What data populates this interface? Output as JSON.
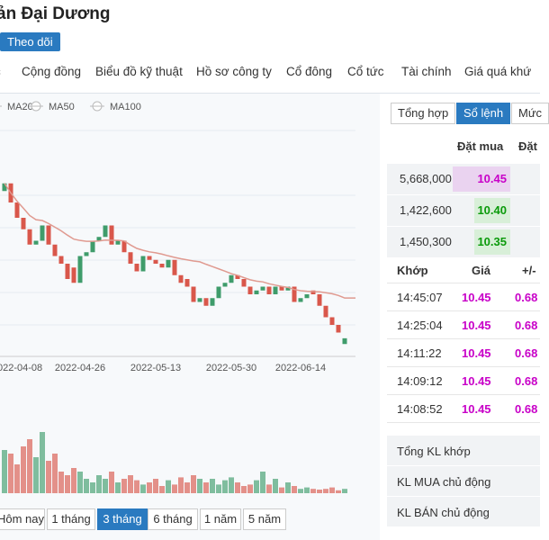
{
  "header": {
    "title": "ản Đại Dương",
    "follow_button": "Theo dõi"
  },
  "nav": [
    "c",
    "Cộng đồng",
    "Biểu đồ kỹ thuật",
    "Hồ sơ công ty",
    "Cổ đông",
    "Cổ tức",
    "Tài chính",
    "Giá quá khứ"
  ],
  "chart_data": {
    "type": "candlestick",
    "legend": [
      "MA20",
      "MA50",
      "MA100"
    ],
    "categories": [
      null,
      null,
      "2022-04-08",
      null,
      null,
      null,
      null,
      null,
      null,
      null,
      null,
      null,
      "2022-04-26",
      null,
      null,
      null,
      null,
      null,
      null,
      null,
      null,
      null,
      null,
      null,
      "2022-05-13",
      null,
      null,
      null,
      null,
      null,
      null,
      null,
      null,
      null,
      null,
      null,
      "2022-05-30",
      null,
      null,
      null,
      null,
      null,
      null,
      null,
      null,
      null,
      null,
      "2022-06-14",
      null,
      null,
      null,
      null,
      null,
      null,
      null
    ],
    "open": [
      14.3,
      14.5,
      14.0,
      13.6,
      13.3,
      12.9,
      13.0,
      13.4,
      12.9,
      12.6,
      12.4,
      12.3,
      11.9,
      12.6,
      12.7,
      13.0,
      13.1,
      13.4,
      12.9,
      13.0,
      12.7,
      12.4,
      12.2,
      12.6,
      12.5,
      12.4,
      12.3,
      12.5,
      12.1,
      12.0,
      11.8,
      11.4,
      11.5,
      11.3,
      11.5,
      11.8,
      11.9,
      12.1,
      12.0,
      11.8,
      11.6,
      11.7,
      11.8,
      11.6,
      11.8,
      11.7,
      11.8,
      11.4,
      11.5,
      11.7,
      11.6,
      11.3,
      11.0,
      10.8,
      10.3
    ],
    "close": [
      14.5,
      14.0,
      13.6,
      13.3,
      12.9,
      13.0,
      13.4,
      12.9,
      12.6,
      12.4,
      12.0,
      11.9,
      12.6,
      12.7,
      13.0,
      13.1,
      13.4,
      12.9,
      13.0,
      12.7,
      12.4,
      12.2,
      12.6,
      12.5,
      12.4,
      12.3,
      12.5,
      12.1,
      11.9,
      11.8,
      11.4,
      11.5,
      11.3,
      11.5,
      11.8,
      11.9,
      12.1,
      12.0,
      11.8,
      11.6,
      11.7,
      11.8,
      11.6,
      11.8,
      11.7,
      11.8,
      11.4,
      11.5,
      11.6,
      11.6,
      11.3,
      11.0,
      10.8,
      10.6,
      10.45
    ],
    "volume": [
      60,
      55,
      40,
      65,
      75,
      50,
      85,
      45,
      55,
      30,
      25,
      35,
      30,
      20,
      15,
      25,
      20,
      30,
      15,
      20,
      25,
      18,
      12,
      15,
      20,
      10,
      18,
      12,
      22,
      15,
      25,
      20,
      15,
      20,
      12,
      18,
      22,
      15,
      10,
      12,
      18,
      30,
      12,
      20,
      8,
      15,
      10,
      6,
      8,
      6,
      5,
      6,
      8,
      4,
      6
    ],
    "ylim": [
      10,
      16
    ],
    "volume_lim": [
      0,
      100
    ],
    "ma_window": 20,
    "up_color": "#3f9c6b",
    "down_color": "#d9574b",
    "ma_color": "#e09a90"
  },
  "periods": [
    "Hôm nay",
    "1 tháng",
    "3 tháng",
    "6 tháng",
    "1 năm",
    "5 năm"
  ],
  "order_book": {
    "tabs": [
      "Tổng hợp",
      "Sổ lệnh",
      "Mức"
    ],
    "headers": [
      "Đặt mua",
      "Đặt"
    ],
    "bids": [
      [
        "5,668,000",
        "10.45"
      ],
      [
        "1,422,600",
        "10.40"
      ],
      [
        "1,450,300",
        "10.35"
      ]
    ]
  },
  "trades": {
    "headers": [
      "Khớp",
      "Giá",
      "+/-"
    ],
    "rows": [
      [
        "14:45:07",
        "10.45",
        "0.68"
      ],
      [
        "14:25:04",
        "10.45",
        "0.68"
      ],
      [
        "14:11:22",
        "10.45",
        "0.68"
      ],
      [
        "14:09:12",
        "10.45",
        "0.68"
      ],
      [
        "14:08:52",
        "10.45",
        "0.68"
      ]
    ]
  },
  "summary": [
    "Tổng KL khớp",
    "KL MUA chủ động",
    "KL BÁN chủ động"
  ]
}
